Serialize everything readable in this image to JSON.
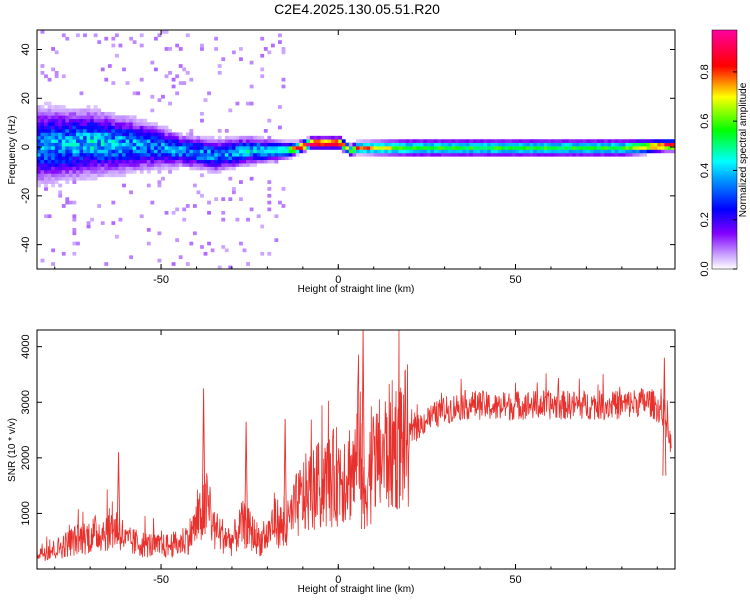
{
  "title": "C2E4.2025.130.05.51.R20",
  "chart_data": [
    {
      "type": "heatmap",
      "xlabel": "Height of straight line (km)",
      "ylabel": "Frequency (Hz)",
      "xlim": [
        -85,
        95
      ],
      "ylim": [
        -50,
        48
      ],
      "xticks": [
        -50,
        0,
        50
      ],
      "yticks": [
        -40,
        -20,
        0,
        20,
        40
      ],
      "colorbar": {
        "label": "Normalized spectral amplitude",
        "range": [
          0,
          0.97
        ],
        "ticks": [
          0.0,
          0.2,
          0.4,
          0.6,
          0.8
        ],
        "colormap": [
          "#ffffff",
          "#8000ff",
          "#0000ff",
          "#00ffff",
          "#00ff00",
          "#ffff00",
          "#ff0000",
          "#ff00ff"
        ]
      },
      "ridge": [
        {
          "x": -85,
          "freq": 0,
          "amp": 0.35,
          "spread": 14
        },
        {
          "x": -70,
          "freq": 1,
          "amp": 0.4,
          "spread": 12
        },
        {
          "x": -55,
          "freq": 0,
          "amp": 0.35,
          "spread": 9
        },
        {
          "x": -45,
          "freq": -2,
          "amp": 0.35,
          "spread": 6
        },
        {
          "x": -35,
          "freq": -4,
          "amp": 0.35,
          "spread": 6
        },
        {
          "x": -25,
          "freq": -2,
          "amp": 0.4,
          "spread": 5
        },
        {
          "x": -15,
          "freq": -2,
          "amp": 0.5,
          "spread": 3
        },
        {
          "x": -12,
          "freq": -1,
          "amp": 0.9,
          "spread": 2
        },
        {
          "x": -8,
          "freq": 1,
          "amp": 0.95,
          "spread": 2
        },
        {
          "x": 0,
          "freq": 1,
          "amp": 0.95,
          "spread": 2
        },
        {
          "x": 3,
          "freq": -2,
          "amp": 0.6,
          "spread": 2
        },
        {
          "x": 5,
          "freq": -1,
          "amp": 0.85,
          "spread": 2
        },
        {
          "x": 20,
          "freq": -1,
          "amp": 0.55,
          "spread": 3
        },
        {
          "x": 50,
          "freq": -1,
          "amp": 0.55,
          "spread": 3
        },
        {
          "x": 80,
          "freq": -1,
          "amp": 0.55,
          "spread": 3
        },
        {
          "x": 92,
          "freq": 0,
          "amp": 0.9,
          "spread": 2
        }
      ]
    },
    {
      "type": "line",
      "xlabel": "Height of straight line (km)",
      "ylabel": "SNR (10 * v/v)",
      "xlim": [
        -85,
        95
      ],
      "ylim": [
        0,
        4300
      ],
      "xticks": [
        -50,
        0,
        50
      ],
      "yticks": [
        1000,
        2000,
        3000,
        4000
      ],
      "color": "#e8302c",
      "series": [
        {
          "x": [
            -85,
            -80,
            -75,
            -70,
            -65,
            -62,
            -60,
            -55,
            -50,
            -45,
            -42,
            -39,
            -37,
            -35,
            -30,
            -27,
            -25,
            -22,
            -20,
            -18,
            -15,
            -12,
            -10,
            -8,
            -5,
            -2,
            0,
            2,
            5,
            6,
            7,
            8,
            10,
            15,
            20,
            25,
            30,
            35,
            40,
            45,
            50,
            55,
            60,
            65,
            70,
            75,
            80,
            85,
            88,
            90,
            92,
            94
          ],
          "y": [
            300,
            350,
            500,
            600,
            700,
            750,
            500,
            450,
            400,
            450,
            600,
            900,
            1200,
            700,
            500,
            800,
            700,
            500,
            600,
            900,
            700,
            1100,
            1300,
            1400,
            1500,
            1600,
            1700,
            1750,
            1800,
            2800,
            1200,
            1600,
            1900,
            2200,
            2400,
            2700,
            2850,
            2950,
            2950,
            2900,
            2950,
            2950,
            2950,
            2950,
            2950,
            2950,
            2950,
            3000,
            3000,
            2900,
            2800,
            2200
          ]
        }
      ],
      "spikes": [
        {
          "x": -62,
          "y": 2100
        },
        {
          "x": -38,
          "y": 3250
        },
        {
          "x": -26,
          "y": 2650
        },
        {
          "x": -15,
          "y": 2700
        },
        {
          "x": 7,
          "y": 4300
        },
        {
          "x": 92,
          "y": 3800
        }
      ]
    }
  ]
}
